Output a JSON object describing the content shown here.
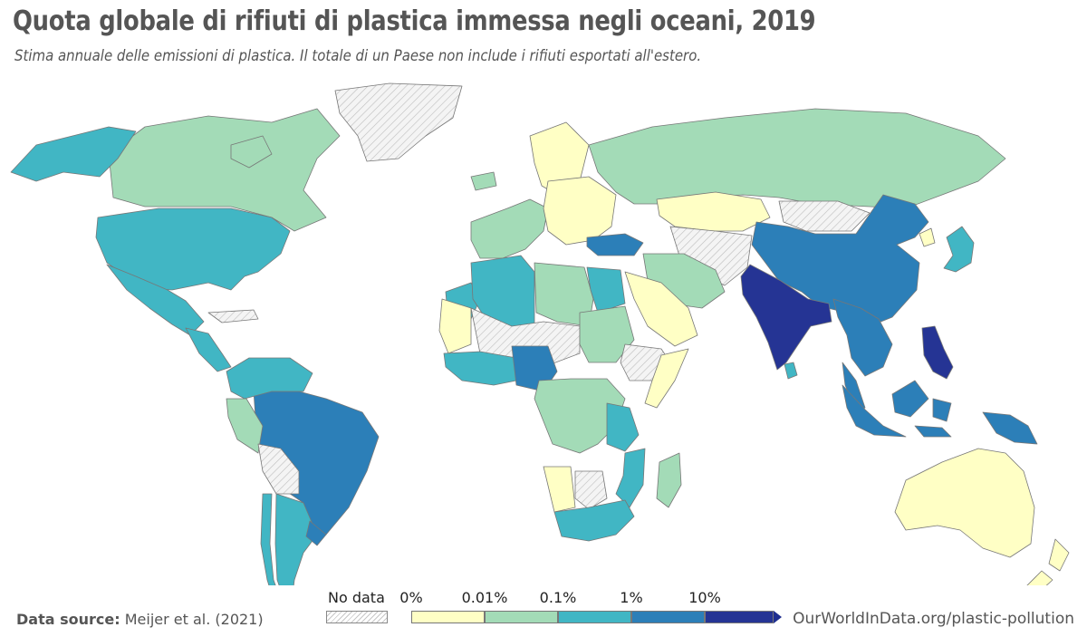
{
  "header": {
    "title": "Quota globale di rifiuti di plastica immessa negli oceani, 2019",
    "subtitle": "Stima annuale delle emissioni di plastica. Il totale di un Paese non include i rifiuti esportati all'estero."
  },
  "footer": {
    "source_label": "Data source:",
    "source_value": "Meijer et al. (2021)",
    "link": "OurWorldInData.org/plastic-pollution"
  },
  "legend": {
    "no_data_label": "No data",
    "bins": [
      {
        "from": "0%",
        "to": "0.01%",
        "color": "#ffffc5"
      },
      {
        "from": "0.01%",
        "to": "0.1%",
        "color": "#a3dbb7"
      },
      {
        "from": "0.1%",
        "to": "1%",
        "color": "#41b6c4"
      },
      {
        "from": "1%",
        "to": "10%",
        "color": "#2c7fb8"
      },
      {
        "from": "10%",
        "to": "",
        "color": "#253494"
      }
    ],
    "tick_labels": [
      "0%",
      "0.01%",
      "0.1%",
      "1%",
      "10%"
    ]
  },
  "colors": {
    "no_data": "#d9d9d9",
    "ocean": "#ffffff",
    "border": "#777777"
  },
  "chart_data": {
    "type": "choropleth",
    "title": "Quota globale di rifiuti di plastica immessa negli oceani, 2019",
    "subtitle": "Stima annuale delle emissioni di plastica. Il totale di un Paese non include i rifiuti esportati all'estero.",
    "scale": [
      "0%",
      "0.01%",
      "0.1%",
      "1%",
      "10%"
    ],
    "regions": [
      {
        "name": "Canada",
        "bin": "0.01%-0.1%"
      },
      {
        "name": "Alaska (USA)",
        "bin": "0.1%-1%"
      },
      {
        "name": "United States",
        "bin": "0.1%-1%"
      },
      {
        "name": "Mexico",
        "bin": "0.1%-1%"
      },
      {
        "name": "Central America",
        "bin": "0.1%-1%"
      },
      {
        "name": "Caribbean",
        "bin": "no-data"
      },
      {
        "name": "Brazil",
        "bin": "1%-10%"
      },
      {
        "name": "Colombia/Venezuela",
        "bin": "0.1%-1%"
      },
      {
        "name": "Peru",
        "bin": "0.01%-0.1%"
      },
      {
        "name": "Bolivia",
        "bin": "no-data"
      },
      {
        "name": "Chile",
        "bin": "0.1%-1%"
      },
      {
        "name": "Argentina",
        "bin": "0.1%-1%"
      },
      {
        "name": "Uruguay",
        "bin": "1%-10%"
      },
      {
        "name": "Greenland",
        "bin": "no-data"
      },
      {
        "name": "Iceland",
        "bin": "0.01%-0.1%"
      },
      {
        "name": "Scandinavia",
        "bin": "0%-0.01%"
      },
      {
        "name": "Western Europe",
        "bin": "0.01%-0.1%"
      },
      {
        "name": "Eastern Europe",
        "bin": "0%-0.01%"
      },
      {
        "name": "Russia",
        "bin": "0.01%-0.1%"
      },
      {
        "name": "Turkey",
        "bin": "1%-10%"
      },
      {
        "name": "Kazakhstan",
        "bin": "0%-0.01%"
      },
      {
        "name": "Central Asia",
        "bin": "no-data"
      },
      {
        "name": "Mongolia",
        "bin": "no-data"
      },
      {
        "name": "China",
        "bin": "1%-10%"
      },
      {
        "name": "Japan",
        "bin": "0.1%-1%"
      },
      {
        "name": "North Korea",
        "bin": "0%-0.01%"
      },
      {
        "name": "Iran",
        "bin": "0.01%-0.1%"
      },
      {
        "name": "Saudi Arabia",
        "bin": "0%-0.01%"
      },
      {
        "name": "India",
        "bin": "10%+"
      },
      {
        "name": "Sri Lanka",
        "bin": "0.1%-1%"
      },
      {
        "name": "Southeast Asia mainland",
        "bin": "1%-10%"
      },
      {
        "name": "Philippines",
        "bin": "10%+"
      },
      {
        "name": "Indonesia",
        "bin": "1%-10%"
      },
      {
        "name": "Papua New Guinea",
        "bin": "1%-10%"
      },
      {
        "name": "Australia",
        "bin": "0%-0.01%"
      },
      {
        "name": "New Zealand",
        "bin": "0%-0.01%"
      },
      {
        "name": "Morocco",
        "bin": "0.1%-1%"
      },
      {
        "name": "Algeria",
        "bin": "0.1%-1%"
      },
      {
        "name": "Libya",
        "bin": "0.01%-0.1%"
      },
      {
        "name": "Egypt",
        "bin": "0.1%-1%"
      },
      {
        "name": "Mauritania",
        "bin": "0%-0.01%"
      },
      {
        "name": "Sahel",
        "bin": "no-data"
      },
      {
        "name": "Sudan",
        "bin": "0.01%-0.1%"
      },
      {
        "name": "West Africa coast",
        "bin": "0.1%-1%"
      },
      {
        "name": "Nigeria",
        "bin": "1%-10%"
      },
      {
        "name": "Central Africa",
        "bin": "0.01%-0.1%"
      },
      {
        "name": "Horn of Africa",
        "bin": "no-data"
      },
      {
        "name": "Somalia",
        "bin": "0%-0.01%"
      },
      {
        "name": "Tanzania",
        "bin": "0.1%-1%"
      },
      {
        "name": "Mozambique",
        "bin": "0.1%-1%"
      },
      {
        "name": "Namibia",
        "bin": "0%-0.01%"
      },
      {
        "name": "Botswana",
        "bin": "no-data"
      },
      {
        "name": "South Africa",
        "bin": "0.1%-1%"
      },
      {
        "name": "Madagascar",
        "bin": "0.01%-0.1%"
      }
    ]
  }
}
